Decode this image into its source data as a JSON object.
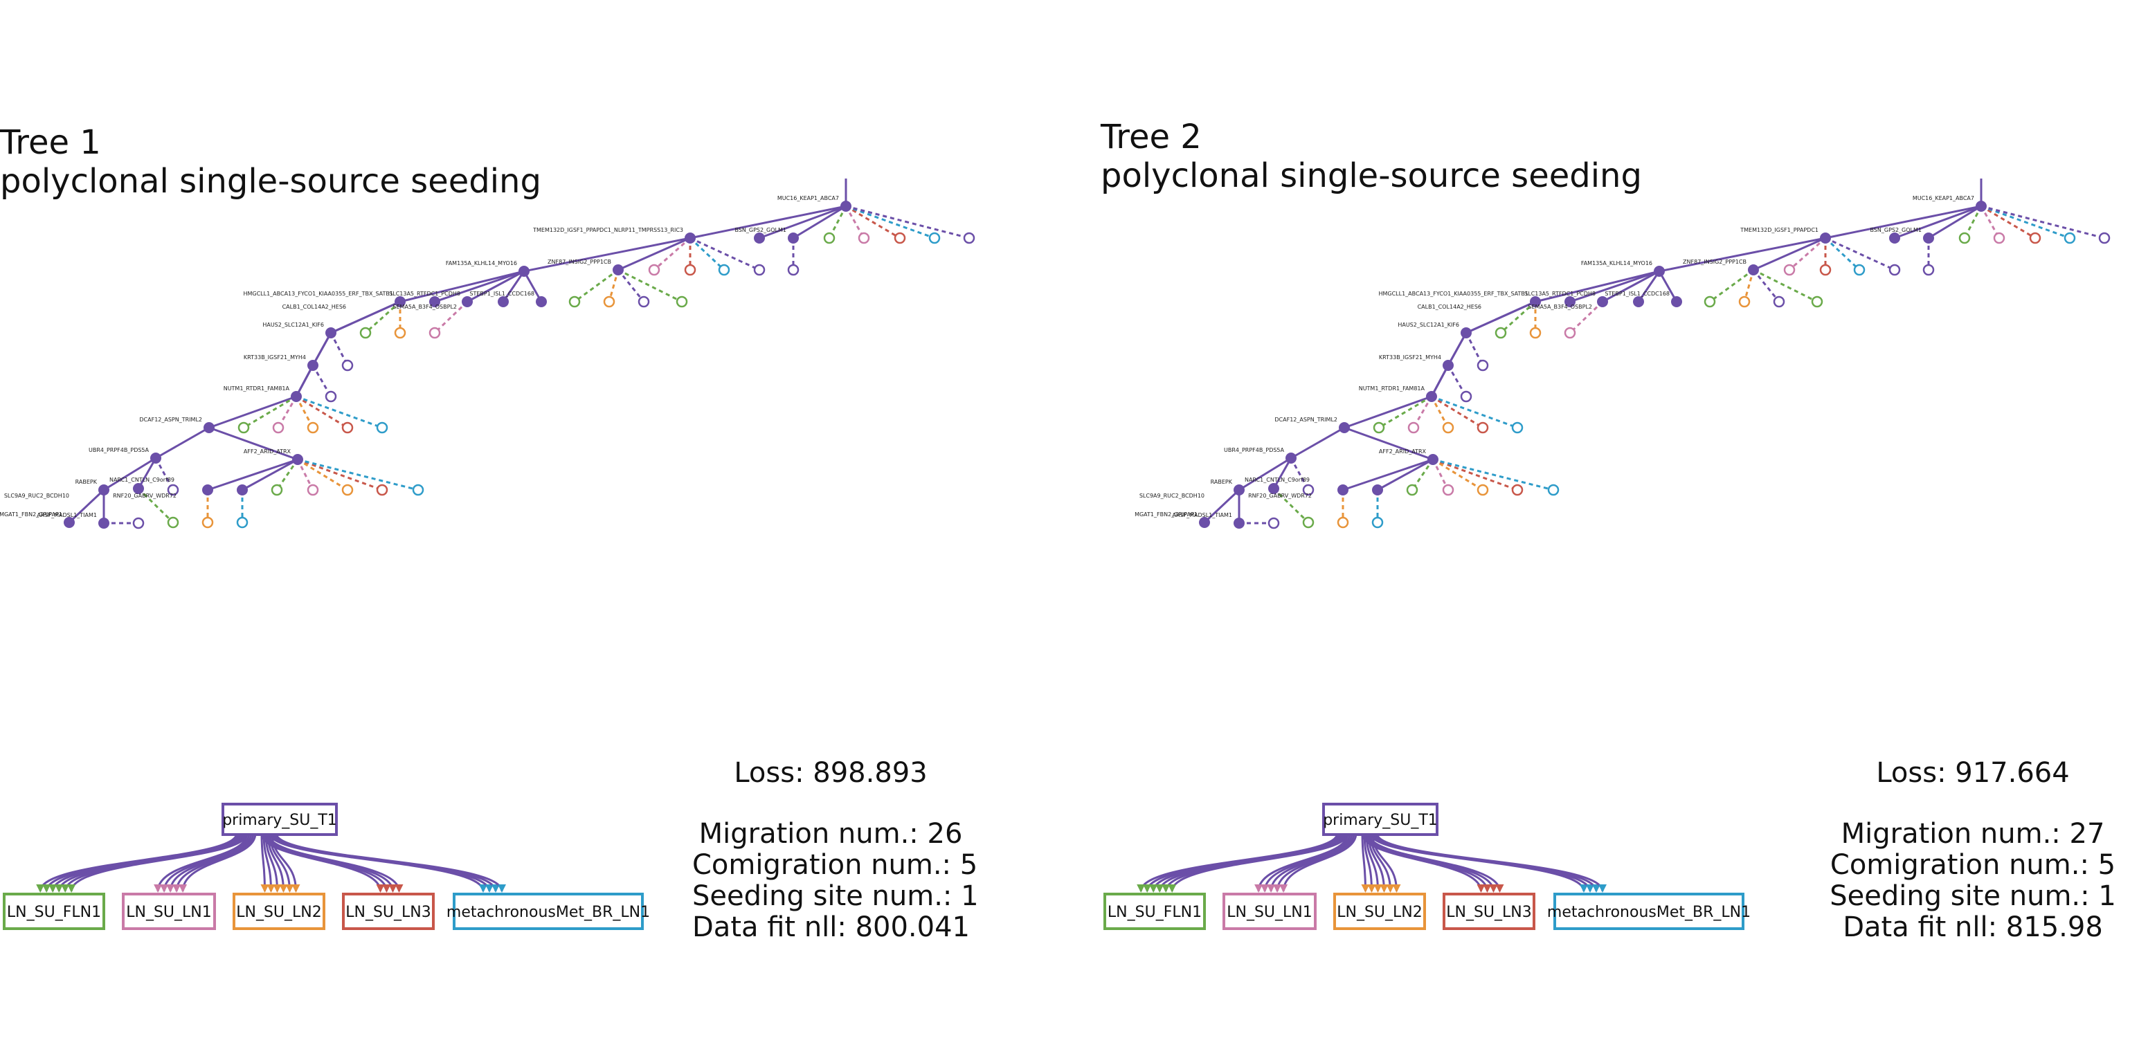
{
  "colors": {
    "primary": "#6b4fa8",
    "LN_SU_FLN1": "#6aaa4a",
    "LN_SU_LN1": "#c97aa7",
    "LN_SU_LN2": "#e8943a",
    "LN_SU_LN3": "#c8574a",
    "metachronousMet_BR_LN1": "#2e9cc9"
  },
  "panels": [
    {
      "title_line1": "Tree 1",
      "title_line2": "polyclonal single-source seeding",
      "clones": [
        "MUC16_KEAP1_ABCA7",
        "TMEM132D_IGSF1_PPAPDC1_NLRP11_TMPRSS13_RIC3",
        "BSN_GPS2_GOLM1",
        "FAM135A_KLHL14_MYO16",
        "ZNF87_INSIG2_PPP1CB",
        "HMGCLL1_ABCA13_FYCO1_KIAA0355_ERF_TBX_SATB1",
        "CALB1_COL14A2_HES6",
        "SLC13A5_RTFDC1_PCDH8",
        "SEMA5A_B3F4_OSBPL2",
        "STEBP1_ISL1_CCDC168",
        "HAUS2_SLC12A1_KIF6",
        "KRT33B_IGSF21_MYH4",
        "NUTM1_RTDR1_FAM81A",
        "DCAF12_ASPN_TRIML2",
        "UBR4_PRPF4B_PDS5A",
        "AFF2_ARID_ATRX",
        "RABEPK",
        "SLC9A9_RUC2_BCDH10",
        "NARC1_CNTLN_C9orf89",
        "RNF20_GABRV_WDR72",
        "MGAT1_FBN2_GRIPAP1",
        "ARSF_MADSL1_TIAM1"
      ],
      "sites": [
        "primary_SU_T1",
        "LN_SU_FLN1",
        "LN_SU_LN1",
        "LN_SU_LN2",
        "LN_SU_LN3",
        "metachronousMet_BR_LN1"
      ],
      "loss": "Loss: 898.893",
      "migration": "Migration num.: 26",
      "comigration": "Comigration num.: 5",
      "seeding": "Seeding site num.: 1",
      "datafit": "Data fit nll: 800.041"
    },
    {
      "title_line1": "Tree 2",
      "title_line2": "polyclonal single-source seeding",
      "clones": [
        "MUC16_KEAP1_ABCA7",
        "TMEM132D_IGSF1_PPAPDC1",
        "BSN_GPS2_GOLM1",
        "FAM135A_KLHL14_MYO16",
        "ZNF87_INSIG2_PPP1CB",
        "HMGCLL1_ABCA13_FYCO1_KIAA0355_ERF_TBX_SATB1",
        "CALB1_COL14A2_HES6",
        "SLC13A5_RTFDC1_PCDH8",
        "SEMA5A_B3F4_OSBPL2",
        "STEBP1_ISL1_CCDC168",
        "HAUS2_SLC12A1_KIF6",
        "KRT33B_IGSF21_MYH4",
        "NUTM1_RTDR1_FAM81A",
        "DCAF12_ASPN_TRIML2",
        "UBR4_PRPF4B_PDS5A",
        "AFF2_ARID_ATRX",
        "RABEPK",
        "SLC9A9_RUC2_BCDH10",
        "NARC1_CNTLN_C9orf89",
        "RNF20_GABRV_WDR72",
        "MGAT1_FBN2_GRIPAP1",
        "ARSF_MADSL1_TIAM1"
      ],
      "sites": [
        "primary_SU_T1",
        "LN_SU_FLN1",
        "LN_SU_LN1",
        "LN_SU_LN2",
        "LN_SU_LN3",
        "metachronousMet_BR_LN1"
      ],
      "loss": "Loss: 917.664",
      "migration": "Migration num.: 27",
      "comigration": "Comigration num.: 5",
      "seeding": "Seeding site num.: 1",
      "datafit": "Data fit nll: 815.98"
    }
  ]
}
